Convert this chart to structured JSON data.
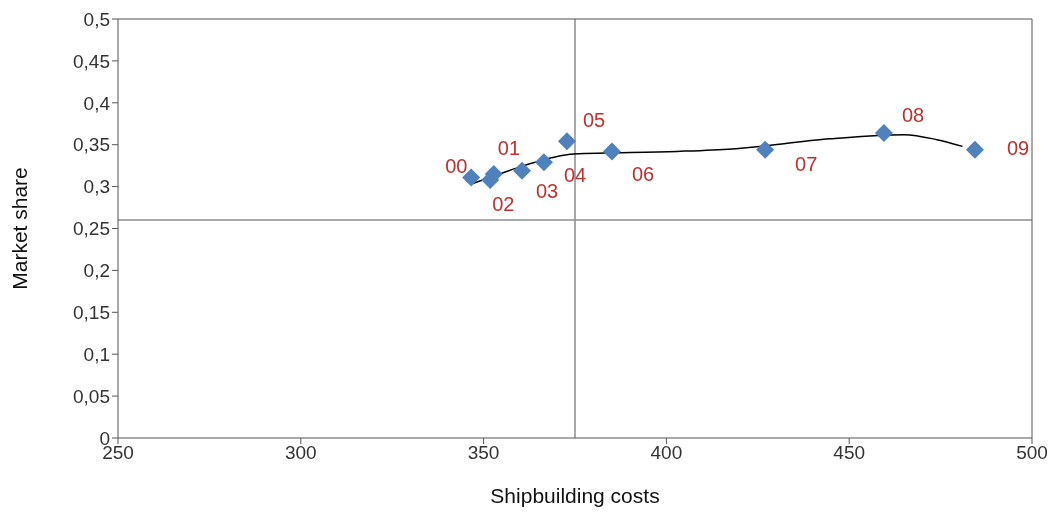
{
  "chart_data": {
    "type": "scatter",
    "xlabel": "Shipbuilding costs",
    "ylabel": "Market share",
    "xlim": [
      250,
      500
    ],
    "xticks": [
      250,
      300,
      350,
      400,
      450,
      500
    ],
    "ylim": [
      0,
      0.5
    ],
    "yticks": [
      0,
      {
        "value": 0.05,
        "label": "0,05"
      },
      {
        "value": 0.1,
        "label": "0,1"
      },
      {
        "value": 0.15,
        "label": "0,15"
      },
      {
        "value": 0.2,
        "label": "0,2"
      },
      {
        "value": 0.25,
        "label": "0,25"
      },
      {
        "value": 0.3,
        "label": "0,3"
      },
      {
        "value": 0.35,
        "label": "0,35"
      },
      {
        "value": 0.4,
        "label": "0,4"
      },
      {
        "value": 0.45,
        "label": "0,45"
      },
      {
        "value": 0.5,
        "label": "0,5"
      }
    ],
    "grid": false,
    "legend": false,
    "marker": "diamond",
    "annotations": [
      {
        "text": "00",
        "x": 346.6,
        "y": 0.311
      },
      {
        "text": "01",
        "x": 352.8,
        "y": 0.315
      },
      {
        "text": "02",
        "x": 351.8,
        "y": 0.308
      },
      {
        "text": "03",
        "x": 360.5,
        "y": 0.319
      },
      {
        "text": "04",
        "x": 366.5,
        "y": 0.329
      },
      {
        "text": "05",
        "x": 372.8,
        "y": 0.354
      },
      {
        "text": "06",
        "x": 385.1,
        "y": 0.342
      },
      {
        "text": "07",
        "x": 427,
        "y": 0.344
      },
      {
        "text": "08",
        "x": 459.5,
        "y": 0.364
      },
      {
        "text": "09",
        "x": 484.4,
        "y": 0.344
      }
    ],
    "ref_lines": [
      {
        "axis": "x",
        "value": 375,
        "color": "#8c8c8c"
      },
      {
        "axis": "y",
        "value": 0.26,
        "color": "#8c8c8c"
      }
    ],
    "series": [
      {
        "color": "#4f81bd",
        "x": [
          346.6,
          352.8,
          351.8,
          360.5,
          366.5,
          372.8,
          385.1,
          427,
          459.5,
          484.4
        ],
        "values": [
          0.311,
          0.315,
          0.308,
          0.319,
          0.329,
          0.354,
          0.342,
          0.344,
          0.364,
          0.344
        ]
      },
      {
        "type": "line",
        "color": "#000000",
        "marker": "none",
        "x": [
          346.6,
          355,
          361,
          374.7,
          402.9,
          418,
          444.8,
          465,
          474,
          481
        ],
        "values": [
          0.303,
          0.316,
          0.325,
          0.339,
          0.342,
          0.345,
          0.357,
          0.362,
          0.356,
          0.348
        ]
      }
    ]
  }
}
